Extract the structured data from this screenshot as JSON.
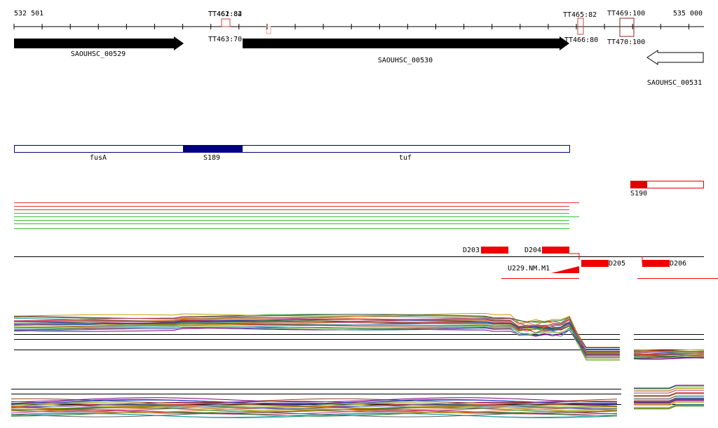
{
  "ruler": {
    "start": "532 501",
    "end": "535 000"
  },
  "terminators": [
    {
      "label": "TT461:84"
    },
    {
      "label": "TT462:82"
    },
    {
      "label": "TT463:70"
    },
    {
      "label": "TT465:82"
    },
    {
      "label": "TT466:80"
    },
    {
      "label": "TT469:100"
    },
    {
      "label": "TT470:100"
    }
  ],
  "genes": [
    {
      "label": "SAOUHSC_00529"
    },
    {
      "label": "SAOUHSC_00530"
    },
    {
      "label": "SAOUHSC_00531"
    }
  ],
  "operon": [
    {
      "label": "fusA"
    },
    {
      "label": "S189"
    },
    {
      "label": "tuf"
    },
    {
      "label": "S190"
    }
  ],
  "segments": [
    {
      "label": "D203"
    },
    {
      "label": "D204"
    },
    {
      "label": "D205"
    },
    {
      "label": "D206"
    },
    {
      "label": "U229.NM.M1"
    }
  ]
}
